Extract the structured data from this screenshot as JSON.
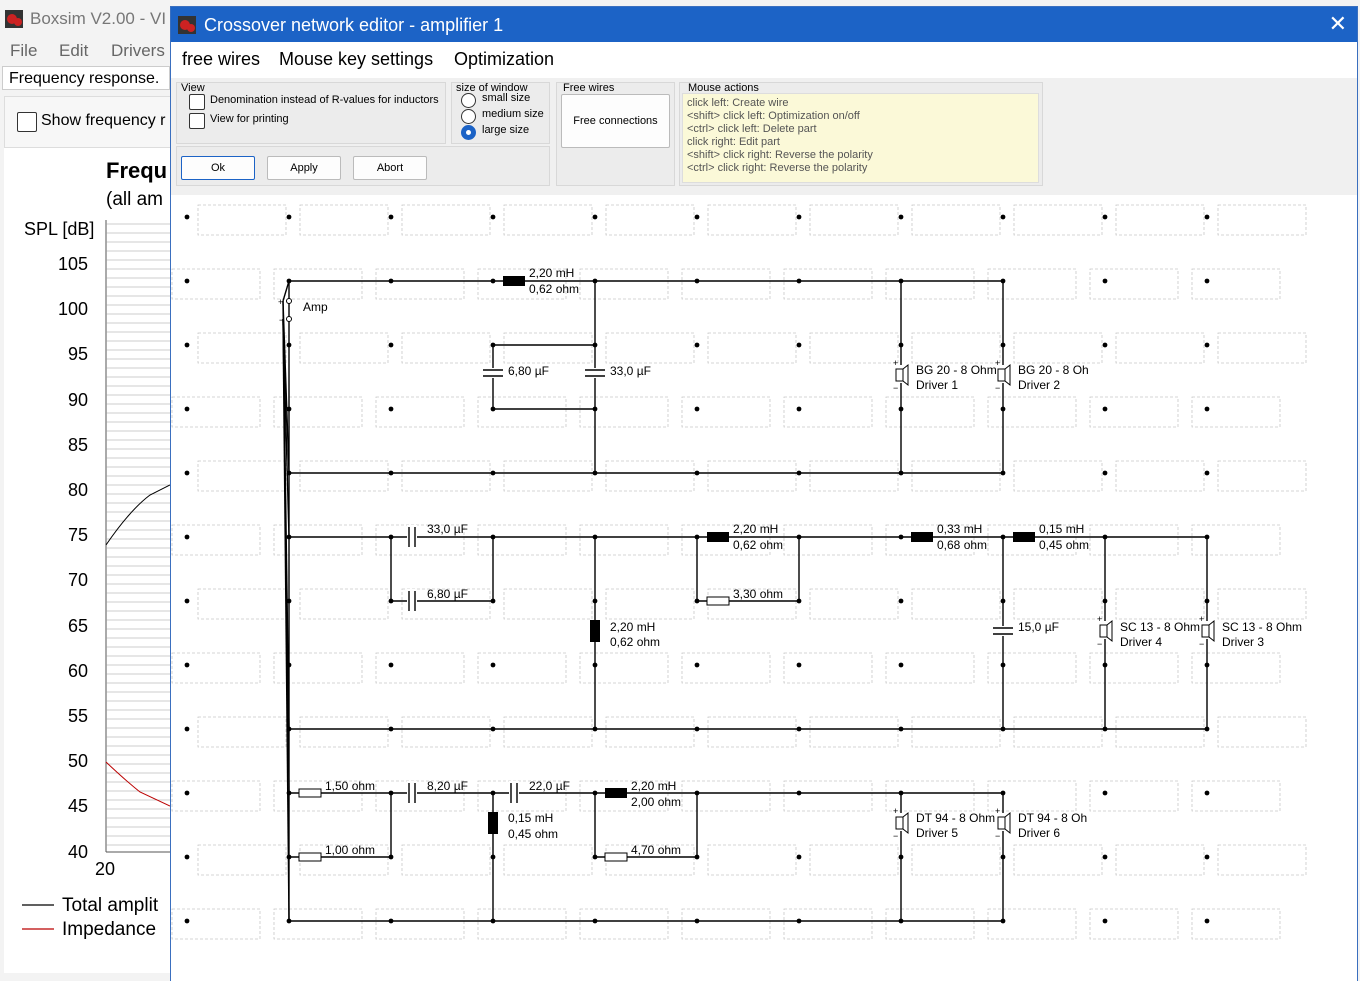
{
  "background_window": {
    "title": "Boxsim V2.00 - VI",
    "menu": [
      "File",
      "Edit",
      "Drivers"
    ],
    "frequency_response_label": "Frequency response.",
    "show_frequency_label": "Show frequency r",
    "chart_title": "Frequ",
    "chart_subtitle": "(all am",
    "y_axis_label": "SPL [dB]",
    "y_ticks": [
      "105",
      "100",
      "95",
      "90",
      "85",
      "80",
      "75",
      "70",
      "65",
      "60",
      "55",
      "50",
      "45",
      "40"
    ],
    "x_tick_first": "20",
    "legend": [
      "Total amplit",
      "Impedance"
    ]
  },
  "dialog": {
    "title": "Crossover network editor - amplifier 1",
    "close_glyph": "✕",
    "menu": [
      "free wires",
      "Mouse key settings",
      "Optimization"
    ],
    "view_group": {
      "title": "View",
      "options": [
        "Denomination instead of R-values for inductors",
        "View for printing"
      ]
    },
    "size_group": {
      "title": "size of window",
      "options": [
        "small size",
        "medium size",
        "large size"
      ],
      "selected": 2
    },
    "free_wires_group": {
      "title": "Free wires",
      "button": "Free connections"
    },
    "mouse_actions": {
      "title": "Mouse actions",
      "lines": [
        "click left: Create wire",
        "<shift> click left: Optimization on/off",
        "<ctrl> click left: Delete part",
        "click right: Edit part",
        "<shift> click right: Reverse the polarity",
        "<ctrl> click right: Reverse the polarity"
      ]
    },
    "buttons": {
      "ok": "Ok",
      "apply": "Apply",
      "abort": "Abort"
    }
  },
  "circuit": {
    "amp_label": "Amp",
    "labels": {
      "l1a": "2,20 mH",
      "l1b": "0,62 ohm",
      "c1": "6,80 µF",
      "c2": "33,0 µF",
      "d1a": "BG 20 - 8 Ohm",
      "d1b": "Driver 1",
      "d2a": "BG 20 - 8 Oh",
      "d2b": "Driver 2",
      "c3": "33,0 µF",
      "c4": "6,80 µF",
      "l2a": "2,20 mH",
      "l2b": "0,62 ohm",
      "r1": "3,30 ohm",
      "l3a": "0,33 mH",
      "l3b": "0,68 ohm",
      "l4a": "0,15 mH",
      "l4b": "0,45 ohm",
      "l5a": "2,20 mH",
      "l5b": "0,62 ohm",
      "c5": "15,0 µF",
      "d4a": "SC 13 - 8 Ohm",
      "d4b": "Driver 4",
      "d3a": "SC 13 - 8 Ohm",
      "d3b": "Driver 3",
      "r2": "1,50 ohm",
      "c6": "8,20 µF",
      "c7": "22,0 µF",
      "l6a": "2,20 mH",
      "l6b": "2,00 ohm",
      "r3": "1,00 ohm",
      "l7a": "0,15 mH",
      "l7b": "0,45 ohm",
      "r4": "4,70 ohm",
      "d5a": "DT 94 - 8 Ohm",
      "d5b": "Driver 5",
      "d6a": "DT 94 - 8 Oh",
      "d6b": "Driver 6"
    }
  }
}
